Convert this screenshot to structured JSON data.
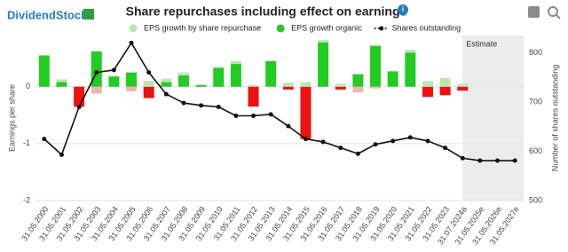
{
  "chart_data": {
    "type": "bar",
    "logo": "DividendStocks",
    "title": "Share repurchases including effect on earnings",
    "ylabel": "Earnings per share",
    "y2label": "Number of shares outstanding",
    "annotation": "Estimate",
    "categories": [
      "31.05.2000",
      "31.05.2001",
      "31.05.2002",
      "31.05.2003",
      "31.05.2004",
      "31.05.2005",
      "31.05.2006",
      "31.05.2007",
      "31.05.2008",
      "31.05.2009",
      "31.05.2010",
      "31.05.2011",
      "31.05.2012",
      "31.05.2013",
      "31.05.2014",
      "31.05.2015",
      "31.05.2016",
      "31.05.2017",
      "31.05.2018",
      "31.05.2019",
      "31.05.2020",
      "31.05.2021",
      "31.05.2022",
      "31.05.2023",
      "31.07.2024a",
      "31.05.2025e",
      "31.05.2026e",
      "31.05.2027e"
    ],
    "series": [
      {
        "name": "EPS growth organic",
        "color": "#22cc22",
        "negative_color": "#ee1111",
        "values": [
          0.55,
          0.08,
          -0.35,
          0.62,
          0.18,
          0.25,
          -0.2,
          0.08,
          0.2,
          0.03,
          0.33,
          0.4,
          -0.35,
          0.45,
          -0.05,
          -0.92,
          0.78,
          -0.05,
          0.22,
          0.72,
          0.27,
          0.6,
          -0.18,
          -0.15,
          -0.07,
          null,
          null,
          null
        ]
      },
      {
        "name": "EPS growth by share repurchase",
        "color": "#b8e8b0",
        "negative_color": "#f2b3b3",
        "values": [
          0,
          0.05,
          0,
          -0.12,
          0,
          -0.08,
          0.1,
          0.06,
          0.05,
          0,
          0.02,
          0.05,
          0.03,
          0,
          0.07,
          0.08,
          0.04,
          0.05,
          -0.1,
          -0.03,
          0,
          0.05,
          0.1,
          0.15,
          0.05,
          null,
          null,
          null
        ]
      },
      {
        "name": "Shares outstanding",
        "color": "#111111",
        "axis": "y2",
        "values": [
          625,
          593,
          690,
          760,
          765,
          820,
          760,
          716,
          698,
          693,
          690,
          672,
          672,
          675,
          651,
          625,
          619,
          607,
          595,
          614,
          621,
          628,
          621,
          607,
          586,
          581,
          581,
          581
        ]
      }
    ],
    "ylim": [
      -2,
      0.9
    ],
    "yticks": [
      -2,
      -1,
      0
    ],
    "y2lim": [
      500,
      835
    ],
    "y2ticks": [
      500,
      600,
      700,
      800
    ],
    "grid": true
  }
}
